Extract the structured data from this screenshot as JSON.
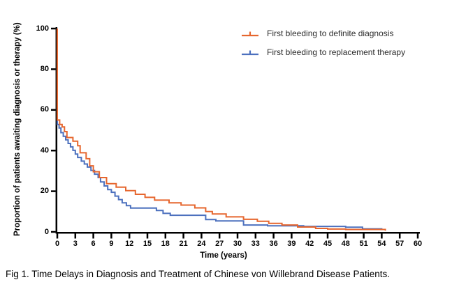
{
  "figure": {
    "caption": "Fig 1. Time Delays in Diagnosis and Treatment of Chinese von Willebrand Disease Patients."
  },
  "colors": {
    "axis": "#000000",
    "text": "#000000",
    "background": "#ffffff",
    "diagnosis_orange": "#E6662E",
    "therapy_blue": "#4C70BE"
  },
  "chart_data": {
    "type": "line",
    "subtype": "kaplan-meier-step",
    "title": "",
    "xlabel": "Time (years)",
    "ylabel": "Proportion of patients awaiting diagnosis or therapy (%)",
    "xlim": [
      0,
      60
    ],
    "ylim": [
      0,
      100
    ],
    "x_ticks": [
      0,
      3,
      6,
      9,
      12,
      15,
      18,
      21,
      24,
      27,
      30,
      33,
      36,
      39,
      42,
      45,
      48,
      51,
      54,
      57,
      60
    ],
    "y_ticks": [
      0,
      20,
      40,
      60,
      80,
      100
    ],
    "grid": false,
    "legend_position": "top-right",
    "legend_marker": "censor-tick",
    "series": [
      {
        "name": "First bleeding to definite diagnosis",
        "color": "#E6662E",
        "points": [
          [
            0,
            100
          ],
          [
            0,
            55
          ],
          [
            0.4,
            52.8
          ],
          [
            0.8,
            51.6
          ],
          [
            1.2,
            49.3
          ],
          [
            1.6,
            46.4
          ],
          [
            2.6,
            44.6
          ],
          [
            3.4,
            42.4
          ],
          [
            3.8,
            38.9
          ],
          [
            4.8,
            36.0
          ],
          [
            5.4,
            32.5
          ],
          [
            6.0,
            29.6
          ],
          [
            7.0,
            26.7
          ],
          [
            8.2,
            23.7
          ],
          [
            9.8,
            22.0
          ],
          [
            11.4,
            20.3
          ],
          [
            13.0,
            18.5
          ],
          [
            14.6,
            17.0
          ],
          [
            16.2,
            15.6
          ],
          [
            18.6,
            14.3
          ],
          [
            20.6,
            13.2
          ],
          [
            22.9,
            11.8
          ],
          [
            24.7,
            10.0
          ],
          [
            25.8,
            8.8
          ],
          [
            28.1,
            7.4
          ],
          [
            31.0,
            6.2
          ],
          [
            33.3,
            5.2
          ],
          [
            35.2,
            4.2
          ],
          [
            37.4,
            3.4
          ],
          [
            40.0,
            2.4
          ],
          [
            43.0,
            1.7
          ],
          [
            45.0,
            1.4
          ],
          [
            48.0,
            1.2
          ],
          [
            54.6,
            1.2
          ],
          [
            54.6,
            0.6
          ]
        ]
      },
      {
        "name": "First bleeding to replacement therapy",
        "color": "#4C70BE",
        "points": [
          [
            0,
            100
          ],
          [
            0,
            52.8
          ],
          [
            0.3,
            51.1
          ],
          [
            0.6,
            48.8
          ],
          [
            1.0,
            47.0
          ],
          [
            1.4,
            45.3
          ],
          [
            1.8,
            43.5
          ],
          [
            2.2,
            41.8
          ],
          [
            2.6,
            40.1
          ],
          [
            3.0,
            38.3
          ],
          [
            3.4,
            36.6
          ],
          [
            4.0,
            34.8
          ],
          [
            4.5,
            33.4
          ],
          [
            5.0,
            31.9
          ],
          [
            5.6,
            30.2
          ],
          [
            6.2,
            28.4
          ],
          [
            6.8,
            26.7
          ],
          [
            7.2,
            24.6
          ],
          [
            7.8,
            22.6
          ],
          [
            8.4,
            20.8
          ],
          [
            9.0,
            19.5
          ],
          [
            9.6,
            17.6
          ],
          [
            10.2,
            15.9
          ],
          [
            10.8,
            14.3
          ],
          [
            11.5,
            12.9
          ],
          [
            12.2,
            11.7
          ],
          [
            16.5,
            10.5
          ],
          [
            17.6,
            9.1
          ],
          [
            18.8,
            8.2
          ],
          [
            24.7,
            6.1
          ],
          [
            26.4,
            5.4
          ],
          [
            31.0,
            3.4
          ],
          [
            35.0,
            3.0
          ],
          [
            41.0,
            2.7
          ],
          [
            48.0,
            2.3
          ],
          [
            50.8,
            1.5
          ],
          [
            54.0,
            1.4
          ],
          [
            54.0,
            0.9
          ]
        ]
      }
    ]
  }
}
